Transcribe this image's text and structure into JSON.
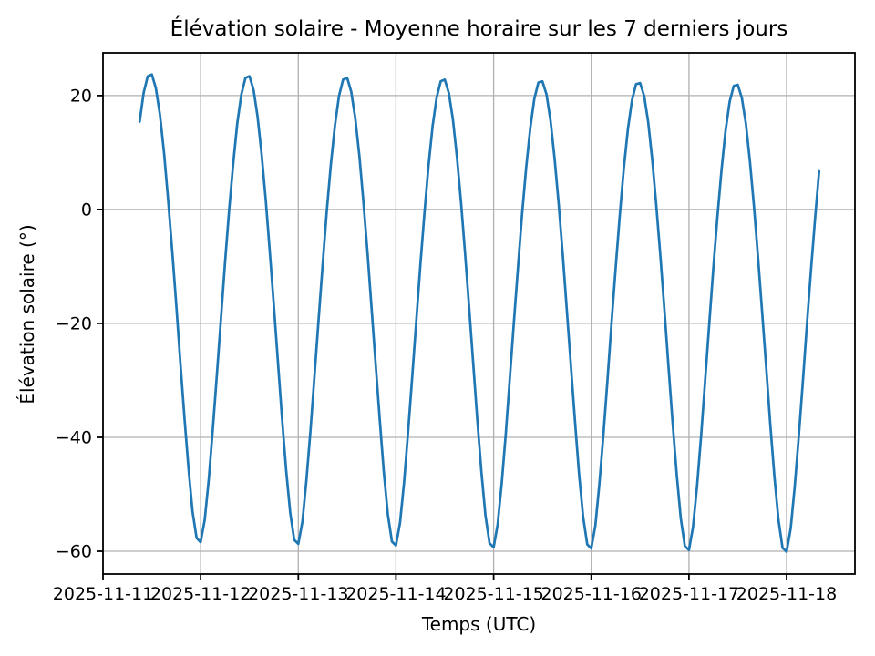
{
  "chart_data": {
    "type": "line",
    "title": "Élévation solaire - Moyenne horaire sur les 7 derniers jours",
    "xlabel": "Temps (UTC)",
    "ylabel": "Élévation solaire (°)",
    "grid": true,
    "grid_color": "#b0b0b0",
    "line_color": "#1f77b4",
    "background_color": "#ffffff",
    "legend": "none",
    "xlim_days": [
      0,
      7.7
    ],
    "ylim": [
      -64,
      27.5
    ],
    "x_tick_labels": [
      "2025-11-11",
      "2025-11-12",
      "2025-11-13",
      "2025-11-14",
      "2025-11-15",
      "2025-11-16",
      "2025-11-17",
      "2025-11-18"
    ],
    "y_ticks": [
      {
        "value": 20,
        "label": "20"
      },
      {
        "value": 0,
        "label": "0"
      },
      {
        "value": -20,
        "label": "−20"
      },
      {
        "value": -40,
        "label": "−40"
      },
      {
        "value": -60,
        "label": "−60"
      }
    ],
    "series": [
      {
        "name": "Élévation solaire (°), moyenne horaire",
        "x_start": "2025-11-11 09:00 UTC",
        "x_start_hours": 9,
        "x_step_hours": 1,
        "values": [
          15.4,
          20.5,
          23.4,
          23.7,
          21.3,
          16.6,
          9.9,
          1.8,
          -7.2,
          -16.8,
          -26.7,
          -36.4,
          -45.4,
          -53.0,
          -57.7,
          -58.4,
          -54.5,
          -47.3,
          -38.5,
          -28.9,
          -19.0,
          -9.3,
          -0.1,
          8.1,
          15.1,
          20.2,
          23.1,
          23.4,
          21.0,
          16.3,
          9.6,
          1.6,
          -7.4,
          -17.0,
          -26.9,
          -36.6,
          -45.7,
          -53.2,
          -58.0,
          -58.7,
          -54.8,
          -47.5,
          -38.7,
          -29.1,
          -19.2,
          -9.5,
          -0.3,
          7.9,
          14.8,
          19.9,
          22.8,
          23.1,
          20.7,
          16.0,
          9.4,
          1.4,
          -7.6,
          -17.2,
          -27.1,
          -36.8,
          -45.9,
          -53.5,
          -58.3,
          -59.0,
          -55.0,
          -47.8,
          -38.9,
          -29.3,
          -19.4,
          -9.7,
          -0.6,
          7.6,
          14.6,
          19.7,
          22.5,
          22.8,
          20.4,
          15.8,
          9.1,
          1.1,
          -7.8,
          -17.4,
          -27.3,
          -37.0,
          -46.1,
          -53.7,
          -58.6,
          -59.3,
          -55.3,
          -48.0,
          -39.2,
          -29.5,
          -19.6,
          -10.0,
          -0.8,
          7.4,
          14.3,
          19.4,
          22.3,
          22.5,
          20.2,
          15.5,
          8.9,
          0.9,
          -8.1,
          -17.7,
          -27.5,
          -37.3,
          -46.4,
          -54.0,
          -58.8,
          -59.5,
          -55.5,
          -48.2,
          -39.4,
          -29.7,
          -19.8,
          -10.2,
          -1.0,
          7.2,
          14.1,
          19.2,
          22.0,
          22.2,
          19.9,
          15.3,
          8.6,
          0.6,
          -8.3,
          -17.9,
          -27.7,
          -37.5,
          -46.6,
          -54.2,
          -59.1,
          -59.8,
          -55.8,
          -48.5,
          -39.6,
          -29.9,
          -20.0,
          -10.4,
          -1.3,
          6.9,
          13.8,
          18.9,
          21.7,
          21.9,
          19.6,
          15.0,
          8.4,
          0.4,
          -8.5,
          -18.1,
          -27.9,
          -37.7,
          -46.8,
          -54.5,
          -59.4,
          -60.1,
          -56.0,
          -48.7,
          -39.8,
          -30.1,
          -20.2,
          -10.6,
          -1.5,
          6.7
        ]
      }
    ]
  }
}
